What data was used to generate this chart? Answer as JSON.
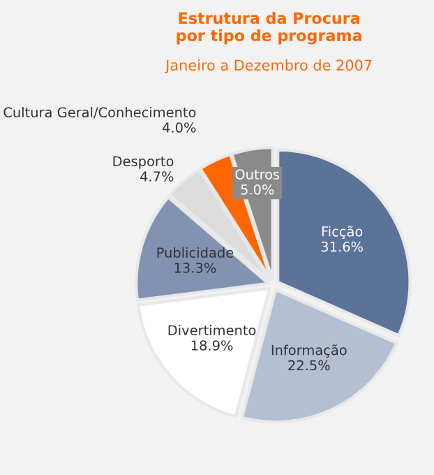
{
  "chart_data": {
    "type": "pie",
    "title": "Estrutura da Procura\npor tipo de programa",
    "subtitle": "Janeiro a Dezembro de 2007",
    "categories": [
      "Ficção",
      "Informação",
      "Divertimento",
      "Publicidade",
      "Desporto",
      "Cultura Geral/Conhecimento",
      "Outros"
    ],
    "values": [
      31.6,
      22.5,
      18.9,
      13.3,
      4.7,
      4.0,
      5.0
    ],
    "value_labels": [
      "31.6%",
      "22.5%",
      "18.9%",
      "13.3%",
      "4.7%",
      "4.0%",
      "5.0%"
    ],
    "colors": [
      "#5b7299",
      "#b3bfd3",
      "#ffffff",
      "#8193b1",
      "#dcdcdc",
      "#ff6600",
      "#8a8a8a"
    ],
    "legend": false
  }
}
